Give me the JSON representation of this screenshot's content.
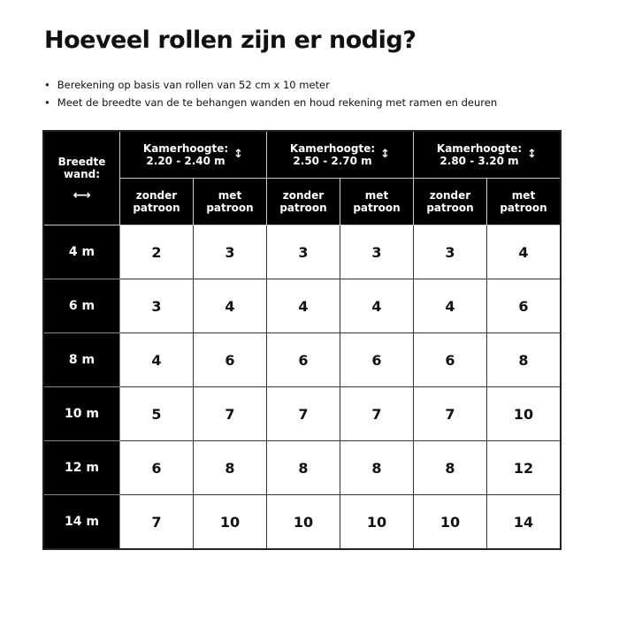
{
  "title": "Hoeveel rollen zijn er nodig?",
  "bullets": [
    "Berekening op basis van rollen van 52 cm x 10 meter",
    "Meet de breedte van de te behangen wanden en houd rekening met ramen en deuren"
  ],
  "table": {
    "corner": {
      "line1": "Breedte",
      "line2": "wand:",
      "icon": "double-arrow-horizontal",
      "glyph": "⟷"
    },
    "groups": [
      {
        "label": "Kamerhoogte:",
        "range": "2.20 - 2.40 m",
        "icon": "double-arrow-vertical",
        "glyph": "↕"
      },
      {
        "label": "Kamerhoogte:",
        "range": "2.50 - 2.70 m",
        "icon": "double-arrow-vertical",
        "glyph": "↕"
      },
      {
        "label": "Kamerhoogte:",
        "range": "2.80 - 3.20 m",
        "icon": "double-arrow-vertical",
        "glyph": "↕"
      }
    ],
    "subheaders": [
      {
        "l1": "zonder",
        "l2": "patroon"
      },
      {
        "l1": "met",
        "l2": "patroon"
      },
      {
        "l1": "zonder",
        "l2": "patroon"
      },
      {
        "l1": "met",
        "l2": "patroon"
      },
      {
        "l1": "zonder",
        "l2": "patroon"
      },
      {
        "l1": "met",
        "l2": "patroon"
      }
    ],
    "rows": [
      {
        "width": "4 m",
        "values": [
          "2",
          "3",
          "3",
          "3",
          "3",
          "4"
        ]
      },
      {
        "width": "6 m",
        "values": [
          "3",
          "4",
          "4",
          "4",
          "4",
          "6"
        ]
      },
      {
        "width": "8 m",
        "values": [
          "4",
          "6",
          "6",
          "6",
          "6",
          "8"
        ]
      },
      {
        "width": "10 m",
        "values": [
          "5",
          "7",
          "7",
          "7",
          "7",
          "10"
        ]
      },
      {
        "width": "12 m",
        "values": [
          "6",
          "8",
          "8",
          "8",
          "8",
          "12"
        ]
      },
      {
        "width": "14 m",
        "values": [
          "7",
          "10",
          "10",
          "10",
          "10",
          "14"
        ]
      }
    ]
  }
}
